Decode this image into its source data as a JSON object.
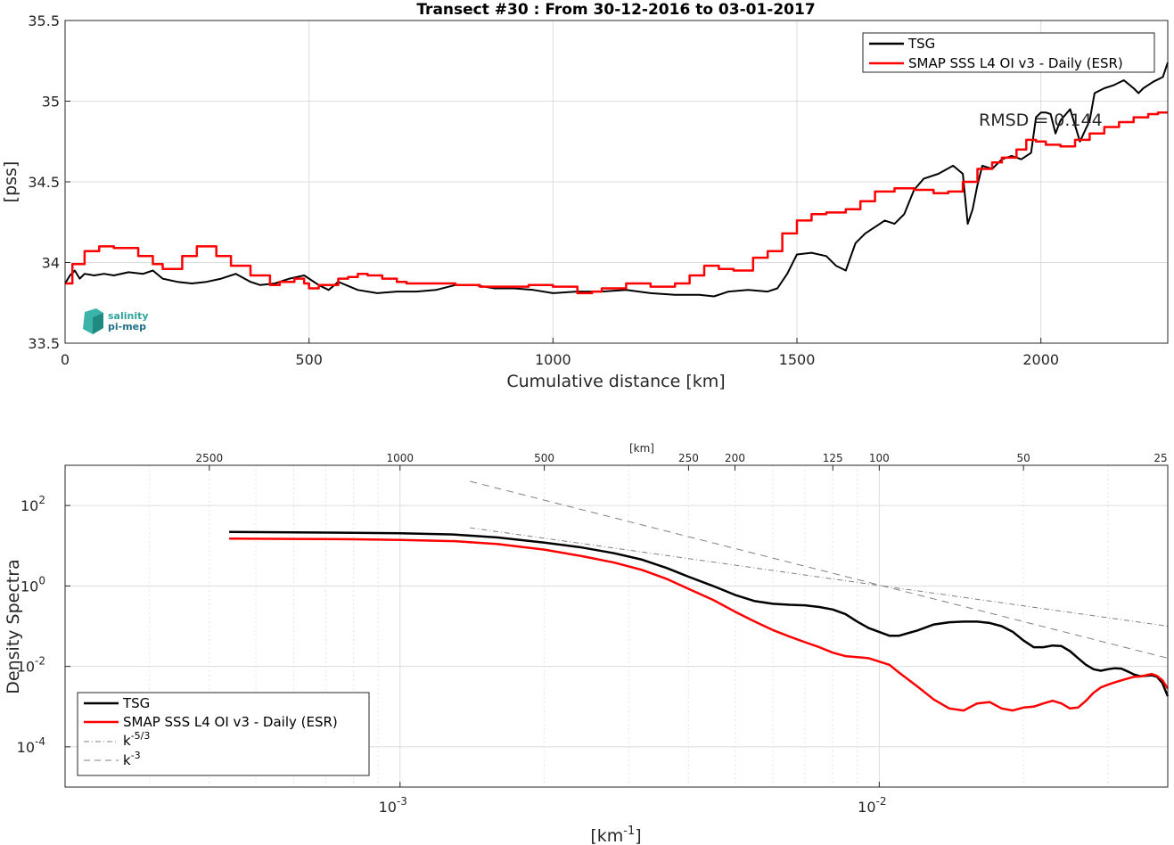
{
  "chart_data": [
    {
      "type": "line",
      "title": "Transect #30 : From 30-12-2016 to 03-01-2017",
      "xlabel": "Cumulative distance [km]",
      "ylabel": "[pss]",
      "xlim": [
        0,
        2260
      ],
      "ylim": [
        33.5,
        35.5
      ],
      "xticks": [
        0,
        500,
        1000,
        1500,
        2000
      ],
      "yticks": [
        33.5,
        34,
        34.5,
        35,
        35.5
      ],
      "xtick_labels": [
        "0",
        "500",
        "1000",
        "1500",
        "2000"
      ],
      "ytick_labels": [
        "33.5",
        "34",
        "34.5",
        "35",
        "35.5"
      ],
      "grid": true,
      "legend": "top-right",
      "annotation": "RMSD = 0.144",
      "logo_text": [
        "salinity",
        "pi-mep"
      ],
      "series": [
        {
          "name": "TSG",
          "color": "#000000",
          "step": false,
          "x": [
            0,
            10,
            20,
            30,
            40,
            60,
            80,
            100,
            130,
            160,
            180,
            200,
            230,
            260,
            290,
            320,
            350,
            380,
            400,
            430,
            460,
            490,
            520,
            540,
            560,
            600,
            640,
            680,
            720,
            760,
            800,
            840,
            880,
            920,
            960,
            1000,
            1050,
            1100,
            1150,
            1200,
            1250,
            1300,
            1330,
            1360,
            1400,
            1440,
            1460,
            1480,
            1500,
            1530,
            1560,
            1580,
            1600,
            1620,
            1640,
            1660,
            1680,
            1700,
            1720,
            1740,
            1760,
            1790,
            1820,
            1840,
            1850,
            1860,
            1870,
            1880,
            1900,
            1920,
            1940,
            1960,
            1980,
            1990,
            2000,
            2010,
            2020,
            2030,
            2040,
            2060,
            2080,
            2100,
            2110,
            2130,
            2150,
            2170,
            2190,
            2200,
            2210,
            2230,
            2250,
            2260
          ],
          "y": [
            33.87,
            33.92,
            33.95,
            33.9,
            33.93,
            33.92,
            33.93,
            33.92,
            33.94,
            33.93,
            33.95,
            33.9,
            33.88,
            33.87,
            33.88,
            33.9,
            33.93,
            33.88,
            33.86,
            33.87,
            33.9,
            33.92,
            33.86,
            33.83,
            33.88,
            33.83,
            33.81,
            33.82,
            33.82,
            33.83,
            33.86,
            33.86,
            33.84,
            33.84,
            33.83,
            33.81,
            33.82,
            33.82,
            33.83,
            33.81,
            33.8,
            33.8,
            33.79,
            33.82,
            33.83,
            33.82,
            33.84,
            33.93,
            34.05,
            34.06,
            34.04,
            33.98,
            33.95,
            34.12,
            34.18,
            34.22,
            34.26,
            34.24,
            34.3,
            34.45,
            34.52,
            34.55,
            34.6,
            34.55,
            34.24,
            34.33,
            34.48,
            34.6,
            34.58,
            34.64,
            34.66,
            34.64,
            34.68,
            34.9,
            34.93,
            34.93,
            34.92,
            34.8,
            34.88,
            34.95,
            34.75,
            34.88,
            35.05,
            35.08,
            35.1,
            35.13,
            35.08,
            35.05,
            35.08,
            35.12,
            35.15,
            35.24
          ]
        },
        {
          "name": "SMAP SSS L4 OI v3 - Daily (ESR)",
          "color": "#ff0000",
          "step": true,
          "x": [
            0,
            15,
            40,
            70,
            100,
            150,
            180,
            200,
            240,
            270,
            310,
            340,
            380,
            420,
            440,
            470,
            490,
            500,
            520,
            560,
            580,
            600,
            620,
            650,
            680,
            700,
            730,
            760,
            800,
            850,
            900,
            950,
            1000,
            1050,
            1080,
            1100,
            1150,
            1200,
            1250,
            1280,
            1310,
            1340,
            1370,
            1410,
            1440,
            1470,
            1500,
            1530,
            1560,
            1600,
            1630,
            1660,
            1700,
            1740,
            1780,
            1810,
            1840,
            1870,
            1900,
            1920,
            1950,
            1970,
            1990,
            2010,
            2040,
            2070,
            2100,
            2130,
            2160,
            2190,
            2220,
            2240,
            2260
          ],
          "y": [
            33.87,
            33.99,
            34.07,
            34.1,
            34.09,
            34.04,
            33.99,
            33.96,
            34.04,
            34.1,
            34.04,
            33.98,
            33.92,
            33.86,
            33.88,
            33.9,
            33.87,
            33.84,
            33.86,
            33.9,
            33.91,
            33.93,
            33.92,
            33.9,
            33.88,
            33.87,
            33.87,
            33.87,
            33.86,
            33.85,
            33.85,
            33.86,
            33.85,
            33.81,
            33.82,
            33.84,
            33.87,
            33.85,
            33.87,
            33.92,
            33.98,
            33.96,
            33.95,
            34.03,
            34.07,
            34.18,
            34.26,
            34.3,
            34.31,
            34.33,
            34.38,
            34.44,
            34.46,
            34.45,
            34.43,
            34.44,
            34.5,
            34.58,
            34.62,
            34.65,
            34.7,
            34.76,
            34.75,
            34.73,
            34.72,
            34.76,
            34.8,
            34.84,
            34.87,
            34.9,
            34.92,
            34.93,
            34.93
          ]
        }
      ]
    },
    {
      "type": "line",
      "xscale": "log",
      "yscale": "log",
      "xlabel": "[km^-1]",
      "ylabel": "Density Spectra",
      "top_axis_label": "[km]",
      "xlim": [
        0.0002,
        0.04
      ],
      "ylim": [
        1e-05,
        1000
      ],
      "bottom_ticks": [
        0.001,
        0.01
      ],
      "bottom_tick_labels": [
        {
          "base": "10",
          "exp": "-3"
        },
        {
          "base": "10",
          "exp": "-2"
        }
      ],
      "left_ticks": [
        0.0001,
        0.01,
        1,
        100
      ],
      "left_tick_labels": [
        {
          "base": "10",
          "exp": "-4"
        },
        {
          "base": "10",
          "exp": "-2"
        },
        {
          "base": "10",
          "exp": "0"
        },
        {
          "base": "10",
          "exp": "2"
        }
      ],
      "top_ticks": [
        "2500",
        "1000",
        "500",
        "250",
        "200",
        "125",
        "100",
        "50",
        "25"
      ],
      "grid": true,
      "legend": "bottom-left",
      "series": [
        {
          "name": "TSG",
          "color": "#000000",
          "x": [
            0.00044,
            0.0006,
            0.0008,
            0.001,
            0.0013,
            0.0016,
            0.002,
            0.0024,
            0.0028,
            0.0032,
            0.0036,
            0.004,
            0.0045,
            0.005,
            0.0055,
            0.006,
            0.0065,
            0.007,
            0.0075,
            0.008,
            0.0085,
            0.009,
            0.0095,
            0.0105,
            0.011,
            0.012,
            0.013,
            0.014,
            0.015,
            0.016,
            0.017,
            0.018,
            0.019,
            0.02,
            0.021,
            0.022,
            0.023,
            0.024,
            0.025,
            0.026,
            0.027,
            0.028,
            0.029,
            0.03,
            0.031,
            0.032,
            0.033,
            0.034,
            0.035,
            0.036,
            0.037,
            0.038,
            0.039,
            0.04
          ],
          "y": [
            22,
            21.5,
            21,
            20.5,
            19,
            16,
            12,
            9,
            6.5,
            4.5,
            2.8,
            1.7,
            1.0,
            0.6,
            0.42,
            0.36,
            0.34,
            0.33,
            0.3,
            0.26,
            0.2,
            0.13,
            0.09,
            0.058,
            0.058,
            0.078,
            0.11,
            0.125,
            0.13,
            0.13,
            0.12,
            0.1,
            0.072,
            0.044,
            0.03,
            0.03,
            0.033,
            0.032,
            0.024,
            0.016,
            0.011,
            0.0085,
            0.0078,
            0.0085,
            0.009,
            0.0088,
            0.0075,
            0.0063,
            0.0057,
            0.0058,
            0.006,
            0.0055,
            0.0038,
            0.0018
          ]
        },
        {
          "name": "SMAP SSS L4 OI v3 - Daily (ESR)",
          "color": "#ff0000",
          "x": [
            0.00044,
            0.0006,
            0.0008,
            0.001,
            0.0013,
            0.0016,
            0.002,
            0.0024,
            0.0028,
            0.0032,
            0.0036,
            0.004,
            0.0045,
            0.005,
            0.0055,
            0.006,
            0.0065,
            0.007,
            0.0075,
            0.008,
            0.0085,
            0.009,
            0.0095,
            0.0105,
            0.011,
            0.012,
            0.013,
            0.014,
            0.015,
            0.016,
            0.017,
            0.018,
            0.019,
            0.02,
            0.021,
            0.022,
            0.023,
            0.024,
            0.025,
            0.026,
            0.027,
            0.028,
            0.029,
            0.03,
            0.031,
            0.032,
            0.033,
            0.034,
            0.035,
            0.036,
            0.037,
            0.038,
            0.039,
            0.04
          ],
          "y": [
            15,
            14.8,
            14.5,
            14,
            13,
            11,
            8,
            5.5,
            3.8,
            2.5,
            1.5,
            0.85,
            0.45,
            0.23,
            0.13,
            0.08,
            0.055,
            0.04,
            0.03,
            0.022,
            0.018,
            0.017,
            0.016,
            0.011,
            0.007,
            0.0032,
            0.0015,
            0.0009,
            0.0008,
            0.0012,
            0.0013,
            0.0009,
            0.0008,
            0.00095,
            0.001,
            0.0012,
            0.0014,
            0.0012,
            0.0009,
            0.00095,
            0.0014,
            0.0022,
            0.003,
            0.0035,
            0.004,
            0.0045,
            0.005,
            0.0055,
            0.0056,
            0.006,
            0.0065,
            0.0058,
            0.0045,
            0.0028
          ]
        },
        {
          "name": "k^-5/3",
          "color": "#808080",
          "dash": "dash-dot",
          "x": [
            0.0014,
            0.04
          ],
          "y": [
            28,
            0.1
          ]
        },
        {
          "name": "k^-3",
          "color": "#808080",
          "dash": "dashed",
          "x": [
            0.0014,
            0.04
          ],
          "y": [
            400,
            0.016
          ]
        }
      ]
    }
  ]
}
